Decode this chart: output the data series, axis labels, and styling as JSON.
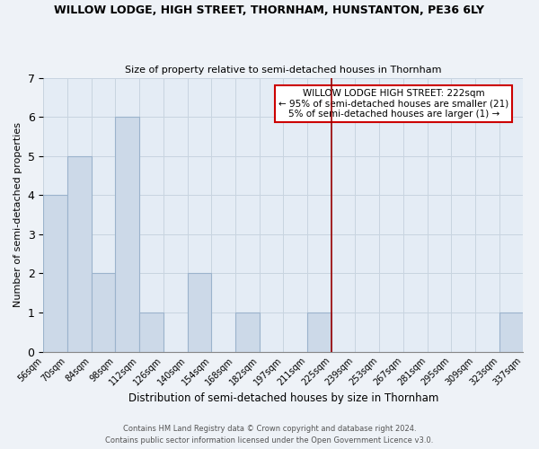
{
  "title": "WILLOW LODGE, HIGH STREET, THORNHAM, HUNSTANTON, PE36 6LY",
  "subtitle": "Size of property relative to semi-detached houses in Thornham",
  "xlabel": "Distribution of semi-detached houses by size in Thornham",
  "ylabel": "Number of semi-detached properties",
  "footer1": "Contains HM Land Registry data © Crown copyright and database right 2024.",
  "footer2": "Contains public sector information licensed under the Open Government Licence v3.0.",
  "bin_labels": [
    "56sqm",
    "70sqm",
    "84sqm",
    "98sqm",
    "112sqm",
    "126sqm",
    "140sqm",
    "154sqm",
    "168sqm",
    "182sqm",
    "197sqm",
    "211sqm",
    "225sqm",
    "239sqm",
    "253sqm",
    "267sqm",
    "281sqm",
    "295sqm",
    "309sqm",
    "323sqm",
    "337sqm"
  ],
  "bar_values": [
    4,
    5,
    2,
    6,
    1,
    0,
    2,
    0,
    1,
    0,
    0,
    1,
    0,
    0,
    0,
    0,
    0,
    0,
    0,
    1
  ],
  "bar_color": "#ccd9e8",
  "bar_edge_color": "#9bb3cc",
  "property_line_index": 12,
  "property_line_color": "#990000",
  "annotation_title": "WILLOW LODGE HIGH STREET: 222sqm",
  "annotation_line1": "← 95% of semi-detached houses are smaller (21)",
  "annotation_line2": "5% of semi-detached houses are larger (1) →",
  "ylim": [
    0,
    7
  ],
  "yticks": [
    0,
    1,
    2,
    3,
    4,
    5,
    6,
    7
  ],
  "background_color": "#eef2f7",
  "plot_background_color": "#e4ecf5",
  "grid_color": "#c8d4e0"
}
